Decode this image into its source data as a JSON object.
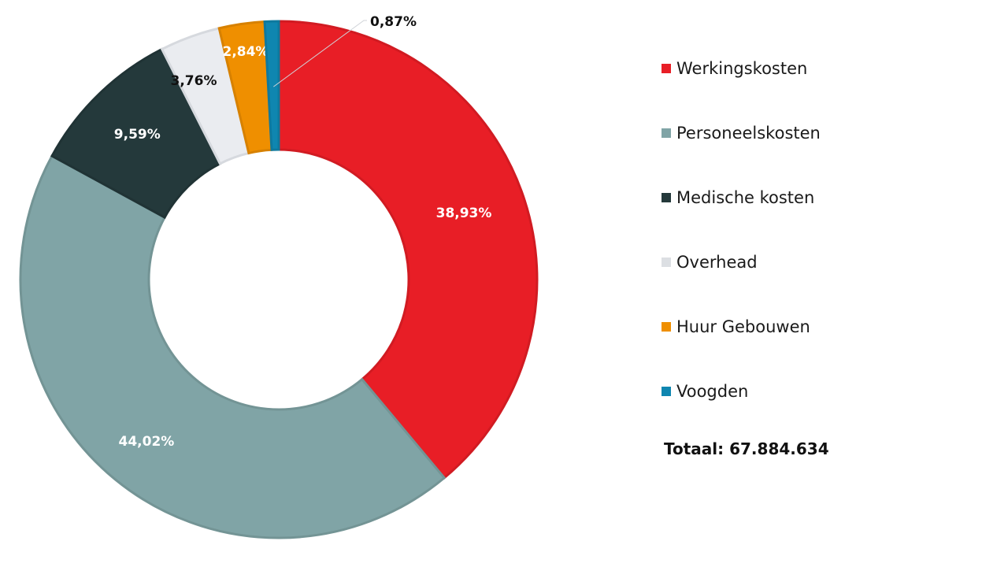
{
  "chart_data": {
    "type": "pie",
    "subtype": "donut",
    "title": "",
    "categories": [
      "Werkingskosten",
      "Personeelskosten",
      "Medische kosten",
      "Overhead",
      "Huur Gebouwen",
      "Voogden"
    ],
    "values": [
      38.93,
      44.02,
      9.59,
      3.76,
      2.84,
      0.87
    ],
    "value_labels": [
      "38,93%",
      "44,02%",
      "9,59%",
      "3,76%",
      "2,84%",
      "0,87%"
    ],
    "colors": [
      "#e81e26",
      "#80a4a6",
      "#24393b",
      "#eaecf0",
      "#ef8f00",
      "#0f86b0"
    ],
    "label_colors": [
      "#ffffff",
      "#ffffff",
      "#ffffff",
      "#111111",
      "#ffffff",
      "#111111"
    ],
    "start_angle_degrees": 0,
    "direction": "clockwise",
    "legend": {
      "position": "right",
      "entries": [
        "Werkingskosten",
        "Personeelskosten",
        "Medische kosten",
        "Overhead",
        "Huur Gebouwen",
        "Voogden"
      ]
    },
    "total_label": "Totaal: 67.884.634"
  }
}
